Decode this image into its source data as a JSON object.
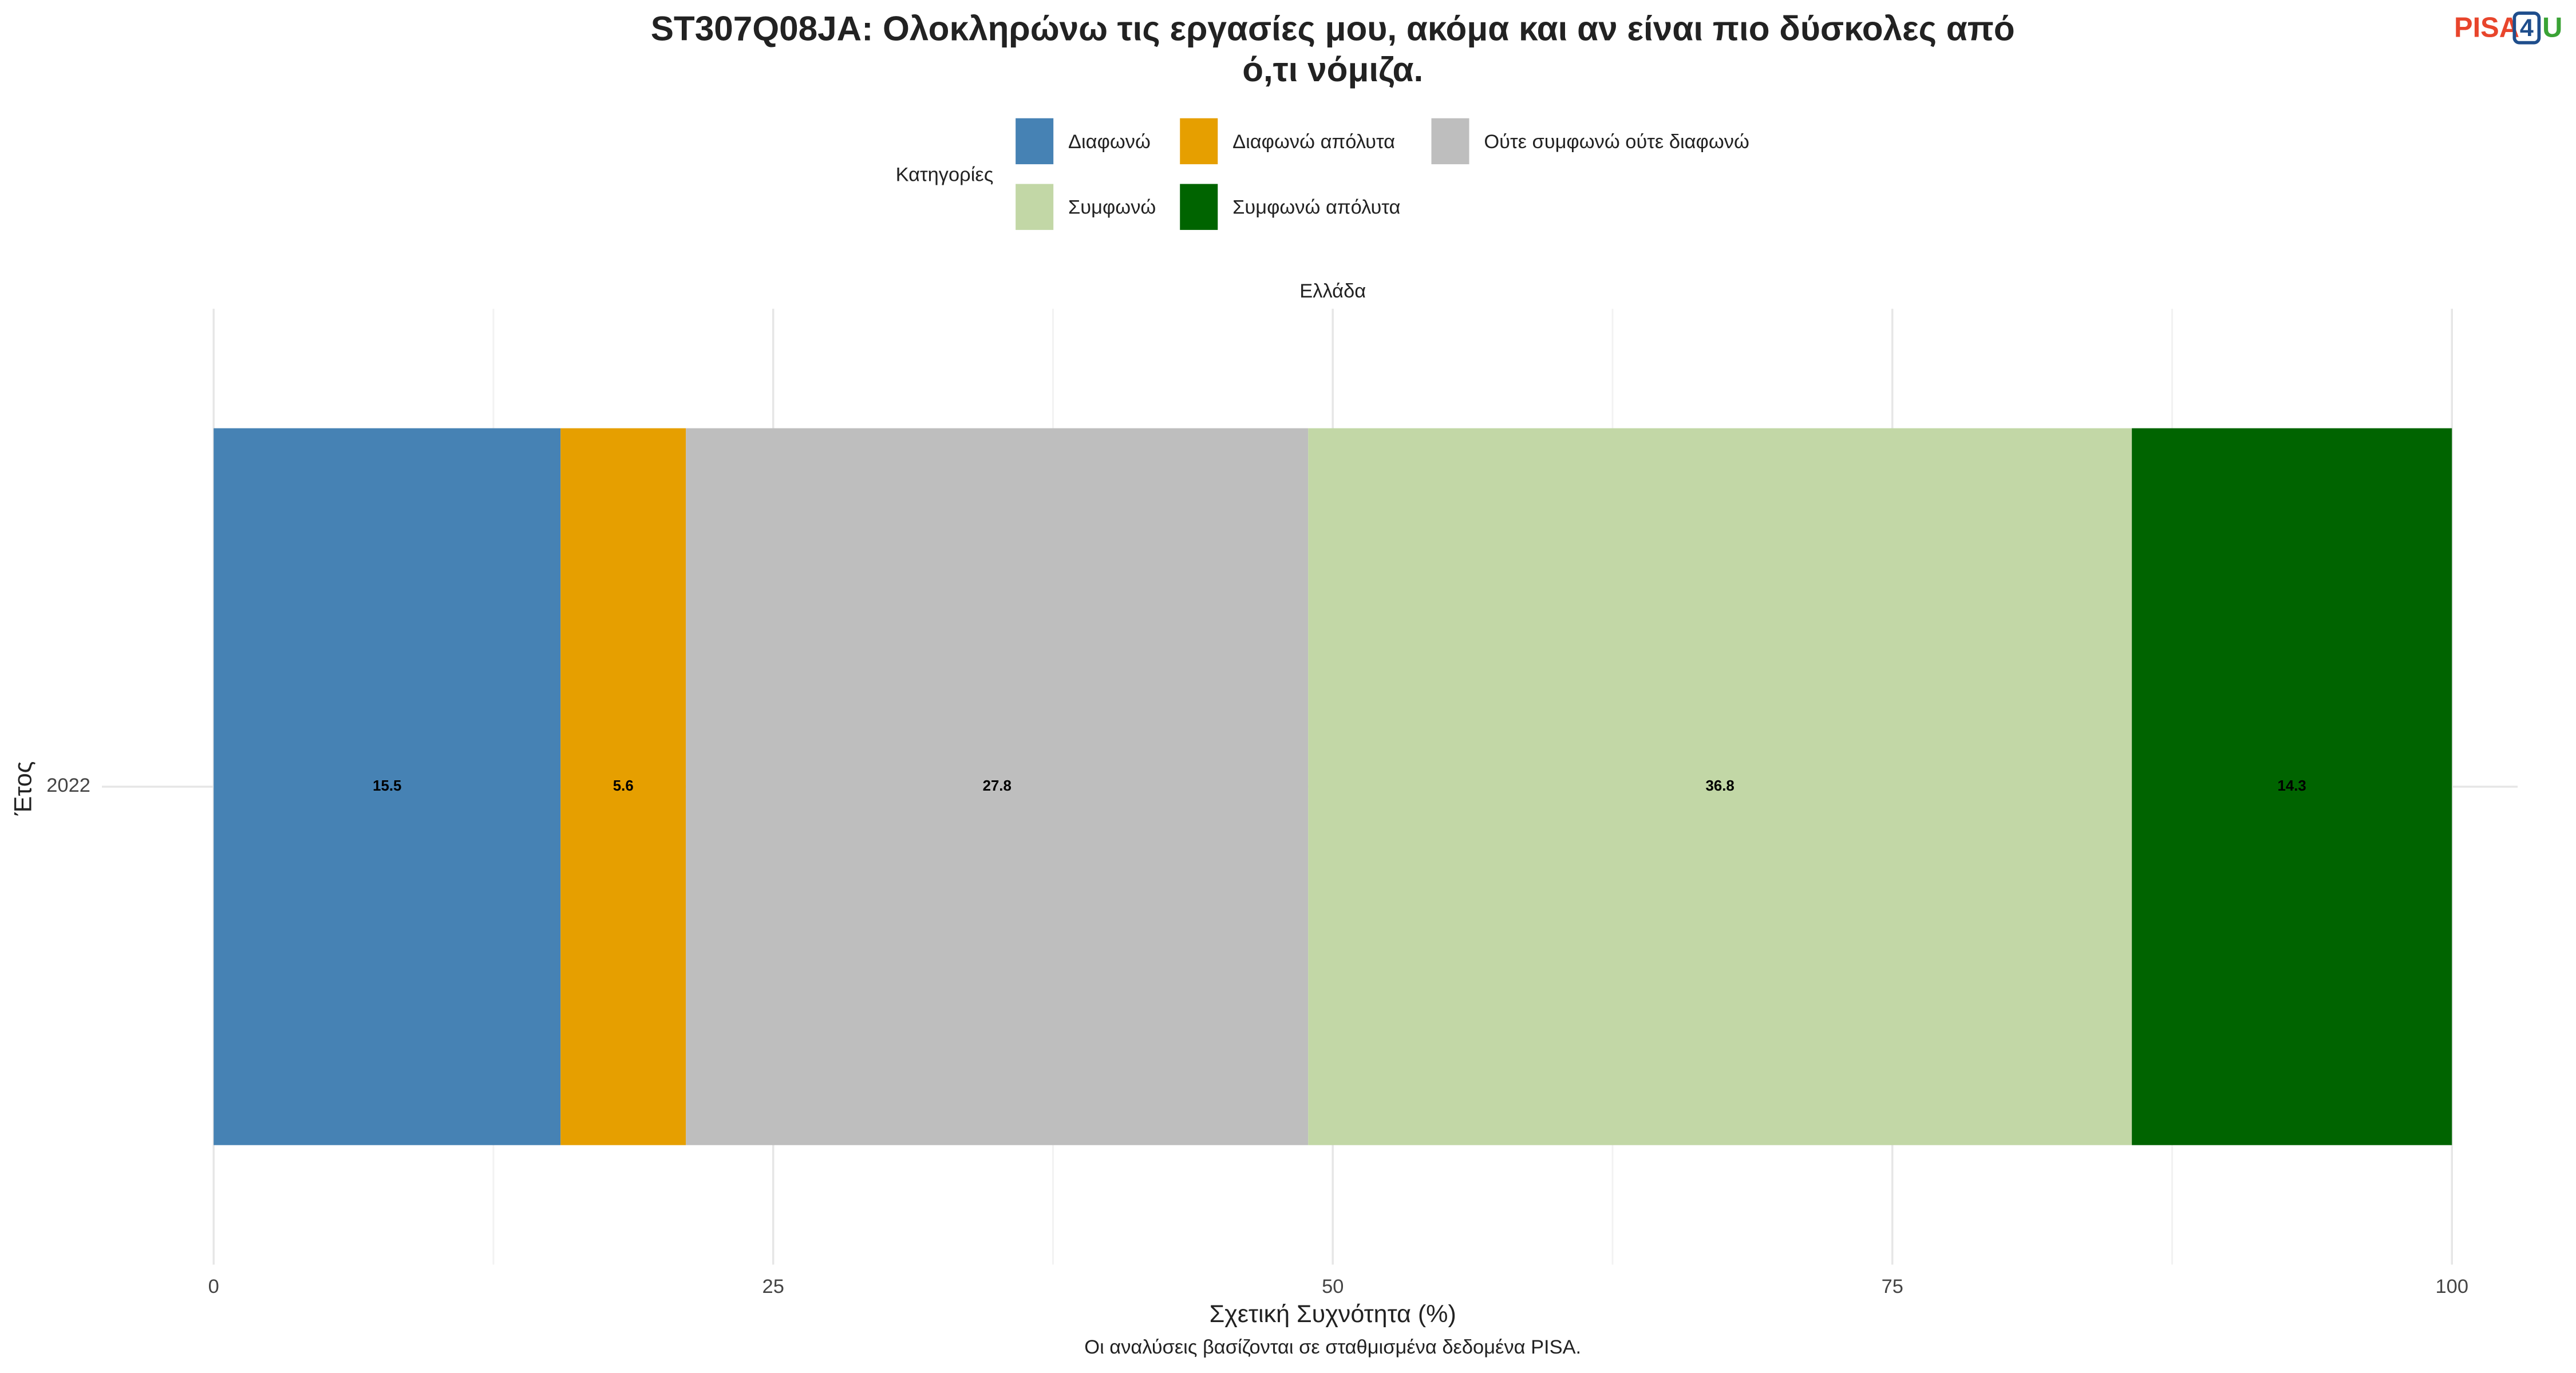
{
  "chart_data": {
    "type": "bar",
    "orientation": "horizontal",
    "stacked": true,
    "title": [
      "ST307Q08JA: Ολοκληρώνω τις εργασίες μου, ακόμα και αν είναι πιο δύσκολες από",
      "ό,τι νόμιζα."
    ],
    "facet": "Ελλάδα",
    "legend_title": "Κατηγορίες",
    "categories": [
      "2022"
    ],
    "series": [
      {
        "name": "Διαφωνώ",
        "color": "#4682b4",
        "values": [
          15.5
        ]
      },
      {
        "name": "Διαφωνώ απόλυτα",
        "color": "#e69f00",
        "values": [
          5.6
        ]
      },
      {
        "name": "Ούτε συμφωνώ ούτε διαφωνώ",
        "color": "#bebebe",
        "values": [
          27.8
        ]
      },
      {
        "name": "Συμφωνώ",
        "color": "#c2d7a6",
        "values": [
          36.8
        ]
      },
      {
        "name": "Συμφωνώ απόλυτα",
        "color": "#006400",
        "values": [
          14.3
        ]
      }
    ],
    "xlim": [
      0,
      100
    ],
    "xticks": [
      0,
      25,
      50,
      75,
      100
    ],
    "x_minor_grid": [
      12.5,
      37.5,
      62.5,
      87.5
    ],
    "grid": true,
    "xlabel": "Σχετική Συχνότητα (%)",
    "ylabel": "Έτος",
    "caption": "Οι αναλύσεις βασίζονται σε σταθμισμένα δεδομένα PISA."
  },
  "logo": [
    "PISA",
    "4",
    "U"
  ]
}
